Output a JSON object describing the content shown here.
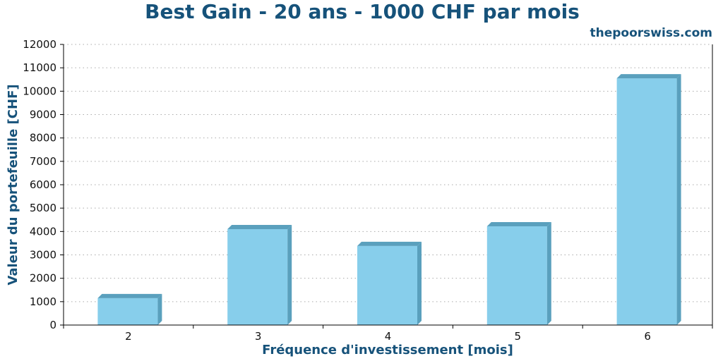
{
  "chart_data": {
    "type": "bar",
    "title": "Best Gain - 20 ans - 1000 CHF par mois",
    "credit": "thepoorswiss.com",
    "xlabel": "Fréquence d'investissement [mois]",
    "ylabel": "Valeur du portefeuille [CHF]",
    "categories": [
      "2",
      "3",
      "4",
      "5",
      "6"
    ],
    "values": [
      1150,
      4100,
      3380,
      4220,
      10550
    ],
    "ylim": [
      0,
      12000
    ],
    "yticks": [
      0,
      1000,
      2000,
      3000,
      4000,
      5000,
      6000,
      7000,
      8000,
      9000,
      10000,
      11000,
      12000
    ],
    "grid": "horizontal dotted",
    "bar_style": "3d"
  },
  "colors": {
    "bar_front": "#87ceeb",
    "bar_side": "#5aa0bd",
    "bar_top": "#5aa0bd",
    "text_accent": "#16527a",
    "grid": "#aaaaaa"
  }
}
